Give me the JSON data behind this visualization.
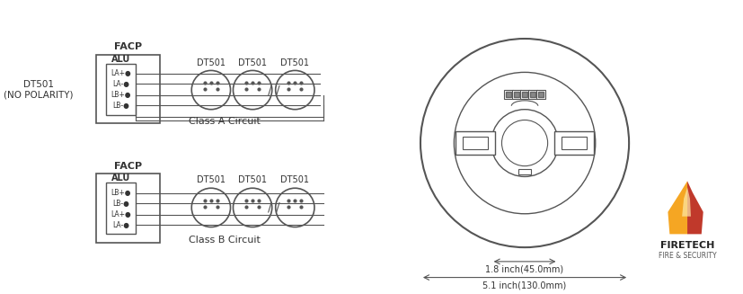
{
  "bg_color": "#ffffff",
  "line_color": "#555555",
  "text_color": "#333333",
  "title_left": "DT501\n(NO POLARITY)",
  "facp_label": "FACP",
  "alu_label": "ALU",
  "class_a_label": "Class A Circuit",
  "class_b_label": "Class B Circuit",
  "dt501_label": "DT501",
  "class_a_terminals": [
    "LA+●",
    "LA-●",
    "LB+●",
    "LB-●"
  ],
  "class_b_terminals": [
    "LB+●",
    "LB-●",
    "LA+●",
    "LA-●"
  ],
  "dim_inner": "1.8 inch(45.0mm)",
  "dim_outer": "5.1 inch(130.0mm)",
  "firetech_line1": "FIRETECH",
  "firetech_line2": "FIRE & SECURITY"
}
